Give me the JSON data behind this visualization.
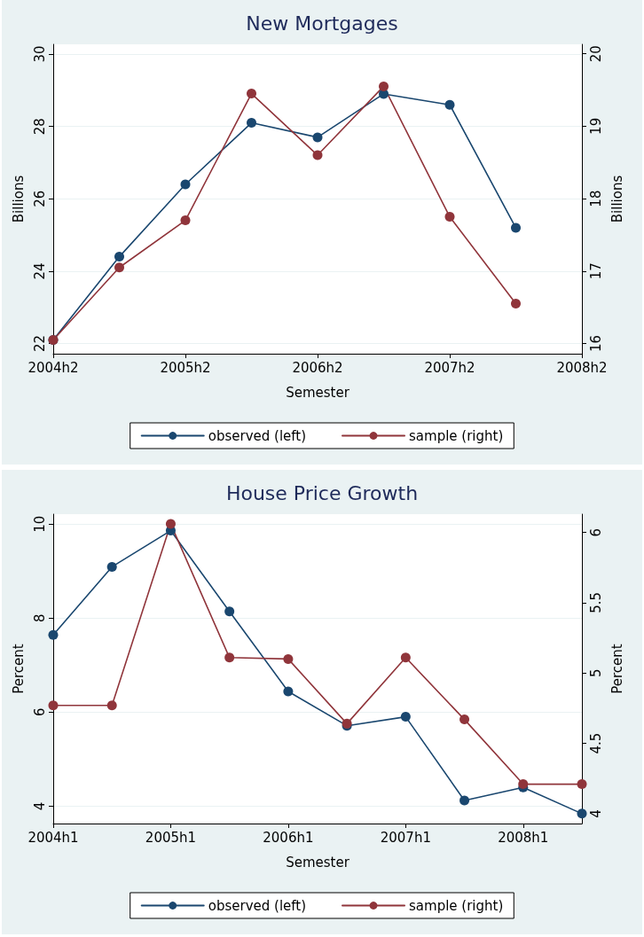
{
  "chart_data": [
    {
      "type": "line",
      "title": "New Mortgages",
      "xlabel": "Semester",
      "ylabel": "Billions",
      "y2label": "Billions",
      "categories": [
        "2004h2",
        null,
        "2005h2",
        null,
        "2006h2",
        null,
        "2007h2",
        null,
        "2008h2"
      ],
      "series": [
        {
          "name": "observed (left)",
          "color": "#1a476f",
          "values": [
            22.1,
            24.4,
            26.4,
            28.1,
            27.7,
            28.9,
            28.6,
            25.2,
            null
          ]
        },
        {
          "name": "sample (right)",
          "color": "#90353b",
          "axis": "y2",
          "values": [
            16.05,
            17.05,
            17.7,
            19.45,
            18.6,
            19.55,
            17.75,
            16.55,
            null
          ]
        }
      ],
      "ylim": [
        21.72,
        30.27
      ],
      "yticks": [
        22,
        24,
        26,
        28,
        30
      ],
      "y2lim": [
        15.86,
        20.13
      ],
      "y2ticks": [
        16,
        17,
        18,
        19,
        20
      ],
      "grid": "y",
      "legend": "bottom",
      "marker": "circle",
      "line_style": "solid"
    },
    {
      "type": "line",
      "title": "House Price Growth",
      "xlabel": "Semester",
      "ylabel": "Percent",
      "y2label": "Percent",
      "categories": [
        "2004h1",
        null,
        "2005h1",
        null,
        "2006h1",
        null,
        "2007h1",
        null,
        "2008h1",
        null
      ],
      "series": [
        {
          "name": "observed (left)",
          "color": "#1a476f",
          "values": [
            7.64,
            9.09,
            9.86,
            8.14,
            6.44,
            5.71,
            5.9,
            4.12,
            4.4,
            3.84
          ]
        },
        {
          "name": "sample (right)",
          "color": "#90353b",
          "axis": "y2",
          "values": [
            4.77,
            4.77,
            6.06,
            5.11,
            5.1,
            4.64,
            5.11,
            4.67,
            4.21,
            4.21
          ]
        }
      ],
      "ylim": [
        3.63,
        10.21
      ],
      "yticks": [
        4,
        6,
        8,
        10
      ],
      "y2lim": [
        3.93,
        6.13
      ],
      "y2ticks": [
        4,
        4.5,
        5,
        5.5,
        6
      ],
      "grid": "y",
      "legend": "bottom",
      "marker": "circle",
      "line_style": "solid"
    }
  ]
}
